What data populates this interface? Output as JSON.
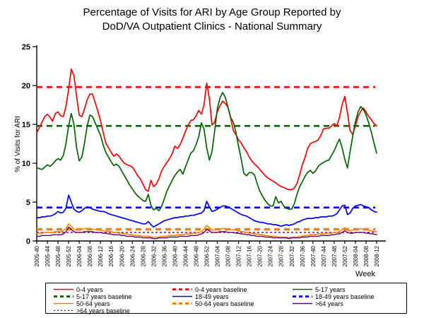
{
  "title": {
    "line1": "Percentage of Visits for ARI by Age Group Reported by",
    "line2": "DoD/VA Outpatient Clinics - National Summary"
  },
  "chart_data": {
    "type": "line",
    "title": "Percentage of Visits for ARI by Age Group Reported by DoD/VA Outpatient Clinics - National Summary",
    "xlabel": "Week",
    "ylabel": "% of Visits for ARI",
    "ylim": [
      0,
      25
    ],
    "y_tick_labels": [
      "0",
      "5",
      "10",
      "15",
      "20",
      "25"
    ],
    "x_tick_every": 4,
    "x_tick_labels": [
      "2005-40",
      "2005-44",
      "2005-48",
      "2005-52",
      "2006-04",
      "2006-08",
      "2006-12",
      "2006-16",
      "2006-20",
      "2006-24",
      "2006-28",
      "2006-32",
      "2006-36",
      "2006-40",
      "2006-44",
      "2006-48",
      "2006-52",
      "2007-04",
      "2007-08",
      "2007-12",
      "2007-16",
      "2007-20",
      "2007-24",
      "2007-28",
      "2007-32",
      "2007-36",
      "2007-40",
      "2007-44",
      "2007-48",
      "2007-52",
      "2008-04",
      "2008-08",
      "2008-12"
    ],
    "x_range_note": "weekly points from 2005-40 through 2008-12",
    "grid": false,
    "legend_position": "bottom",
    "series": [
      {
        "name": "0-4 years",
        "color": "#FF0000",
        "style": "solid",
        "width": 1.7,
        "values": [
          13.9,
          14.6,
          15.3,
          16.0,
          16.3,
          15.9,
          15.4,
          16.4,
          16.6,
          16.1,
          16.0,
          17.3,
          19.5,
          22.1,
          21.3,
          18.6,
          16.2,
          16.0,
          17.0,
          18.2,
          18.9,
          18.9,
          17.8,
          16.7,
          15.5,
          14.0,
          12.6,
          12.0,
          11.4,
          10.9,
          11.2,
          10.9,
          10.4,
          10.0,
          9.8,
          9.7,
          9.5,
          9.0,
          8.4,
          8.0,
          7.3,
          6.6,
          6.4,
          7.8,
          7.0,
          7.3,
          8.0,
          9.0,
          9.6,
          10.1,
          10.6,
          11.2,
          12.2,
          11.9,
          12.4,
          13.2,
          14.1,
          14.9,
          15.5,
          15.6,
          16.1,
          16.8,
          16.3,
          17.5,
          20.3,
          18.3,
          14.9,
          15.3,
          16.6,
          17.4,
          18.0,
          17.7,
          17.2,
          15.9,
          14.2,
          13.7,
          13.0,
          12.6,
          12.0,
          11.5,
          10.8,
          10.3,
          9.9,
          9.6,
          9.2,
          8.8,
          8.4,
          8.1,
          7.9,
          7.7,
          7.5,
          7.2,
          7.0,
          6.9,
          6.7,
          6.6,
          6.6,
          6.8,
          7.4,
          8.5,
          9.8,
          10.7,
          11.9,
          12.5,
          12.7,
          12.8,
          13.0,
          13.6,
          14.4,
          14.5,
          14.5,
          14.8,
          15.1,
          14.8,
          15.9,
          17.5,
          18.6,
          16.5,
          14.2,
          13.7,
          14.8,
          16.0,
          16.7,
          17.1,
          16.6,
          16.0,
          15.6,
          15.1,
          14.8
        ]
      },
      {
        "name": "5-17 years",
        "color": "#006400",
        "style": "solid",
        "width": 1.7,
        "values": [
          9.4,
          9.3,
          9.2,
          9.5,
          9.8,
          9.6,
          9.9,
          10.3,
          10.6,
          10.4,
          11.0,
          12.5,
          14.8,
          16.4,
          15.0,
          12.0,
          10.3,
          10.8,
          12.6,
          14.8,
          16.2,
          16.0,
          15.2,
          14.4,
          13.6,
          12.4,
          11.4,
          10.8,
          10.2,
          9.7,
          9.9,
          9.6,
          9.0,
          8.4,
          7.8,
          7.2,
          6.7,
          6.2,
          5.8,
          5.5,
          5.2,
          5.1,
          6.0,
          4.6,
          4.0,
          4.2,
          3.9,
          4.4,
          5.4,
          6.4,
          7.1,
          7.8,
          8.4,
          8.9,
          9.2,
          8.6,
          9.5,
          10.4,
          11.3,
          11.6,
          12.4,
          13.4,
          15.2,
          14.4,
          12.0,
          10.4,
          11.5,
          14.2,
          17.0,
          18.4,
          19.1,
          18.5,
          17.2,
          15.9,
          15.3,
          14.0,
          12.2,
          10.5,
          8.7,
          8.4,
          8.8,
          8.8,
          8.5,
          7.4,
          6.4,
          5.8,
          5.2,
          4.8,
          4.5,
          4.5,
          5.7,
          4.9,
          5.1,
          4.5,
          4.2,
          4.1,
          4.1,
          4.8,
          6.0,
          7.0,
          7.6,
          8.3,
          8.8,
          9.1,
          8.7,
          9.0,
          9.6,
          9.9,
          10.1,
          10.3,
          10.4,
          11.0,
          11.6,
          12.4,
          13.1,
          12.0,
          10.5,
          9.4,
          11.5,
          13.5,
          15.3,
          16.6,
          17.3,
          16.9,
          16.2,
          15.2,
          14.0,
          12.6,
          11.3
        ]
      },
      {
        "name": "18-49 years",
        "color": "#0000EE",
        "style": "solid",
        "width": 1.7,
        "values": [
          3.0,
          3.0,
          3.1,
          3.1,
          3.2,
          3.2,
          3.3,
          3.5,
          3.8,
          3.6,
          3.7,
          4.2,
          5.9,
          5.0,
          4.1,
          3.8,
          3.7,
          3.9,
          4.2,
          4.4,
          4.3,
          4.1,
          4.0,
          3.9,
          3.8,
          3.8,
          3.7,
          3.5,
          3.4,
          3.3,
          3.2,
          3.1,
          3.0,
          2.9,
          2.8,
          2.7,
          2.6,
          2.5,
          2.4,
          2.3,
          2.2,
          2.2,
          2.5,
          2.1,
          1.8,
          2.0,
          2.2,
          2.4,
          2.6,
          2.7,
          2.8,
          2.9,
          3.0,
          3.0,
          3.1,
          3.1,
          3.2,
          3.2,
          3.3,
          3.3,
          3.4,
          3.5,
          3.6,
          3.9,
          5.1,
          4.4,
          3.8,
          3.9,
          4.1,
          4.3,
          4.5,
          4.5,
          4.4,
          4.2,
          4.0,
          3.8,
          3.6,
          3.4,
          3.3,
          3.2,
          3.0,
          2.8,
          2.6,
          2.5,
          2.4,
          2.4,
          2.3,
          2.2,
          2.2,
          2.1,
          2.1,
          2.0,
          1.9,
          2.0,
          2.1,
          2.0,
          2.1,
          2.2,
          2.4,
          2.5,
          2.7,
          2.8,
          2.9,
          2.9,
          2.9,
          3.0,
          3.0,
          3.1,
          3.1,
          3.1,
          3.2,
          3.2,
          3.3,
          3.5,
          4.0,
          4.5,
          4.6,
          3.4,
          3.6,
          4.2,
          4.5,
          4.6,
          4.7,
          4.5,
          4.4,
          4.3,
          4.0,
          3.8,
          3.7
        ]
      },
      {
        "name": "50-64 years",
        "color": "#FF8000",
        "style": "solid",
        "width": 1.6,
        "values": [
          1.0,
          1.0,
          1.0,
          1.1,
          1.1,
          1.1,
          1.1,
          1.2,
          1.2,
          1.2,
          1.3,
          1.6,
          2.2,
          1.9,
          1.5,
          1.4,
          1.4,
          1.5,
          1.6,
          1.6,
          1.6,
          1.5,
          1.5,
          1.4,
          1.4,
          1.3,
          1.3,
          1.2,
          1.2,
          1.1,
          1.1,
          1.0,
          1.0,
          0.9,
          0.9,
          0.8,
          0.8,
          0.7,
          0.7,
          0.7,
          0.6,
          0.6,
          0.6,
          0.5,
          0.5,
          0.5,
          0.5,
          0.6,
          0.6,
          0.6,
          0.7,
          0.7,
          0.7,
          0.8,
          0.8,
          0.8,
          0.9,
          0.9,
          0.9,
          1.0,
          1.0,
          1.1,
          1.2,
          1.5,
          2.0,
          1.7,
          1.4,
          1.4,
          1.5,
          1.5,
          1.6,
          1.6,
          1.5,
          1.5,
          1.4,
          1.4,
          1.3,
          1.2,
          1.2,
          1.1,
          1.0,
          1.0,
          0.9,
          0.9,
          0.8,
          0.8,
          0.7,
          0.7,
          0.6,
          0.6,
          0.6,
          0.5,
          0.5,
          0.5,
          0.5,
          0.4,
          0.5,
          0.5,
          0.5,
          0.6,
          0.6,
          0.7,
          0.7,
          0.8,
          0.8,
          0.8,
          0.9,
          0.9,
          0.9,
          1.0,
          1.0,
          1.0,
          1.1,
          1.1,
          1.2,
          1.5,
          1.7,
          1.4,
          1.3,
          1.4,
          1.5,
          1.5,
          1.6,
          1.5,
          1.5,
          1.4,
          1.3,
          1.2,
          1.2
        ]
      },
      {
        "name": ">64 years",
        "color": "#660066",
        "style": "solid",
        "width": 1.4,
        "values": [
          0.6,
          0.6,
          0.7,
          0.7,
          0.7,
          0.7,
          0.8,
          0.8,
          0.8,
          0.8,
          0.9,
          1.2,
          1.8,
          1.5,
          1.2,
          1.1,
          1.1,
          1.1,
          1.2,
          1.2,
          1.2,
          1.2,
          1.1,
          1.1,
          1.1,
          1.0,
          1.0,
          0.9,
          0.9,
          0.8,
          0.8,
          0.8,
          0.7,
          0.7,
          0.6,
          0.6,
          0.6,
          0.5,
          0.5,
          0.5,
          0.4,
          0.4,
          0.4,
          0.4,
          0.3,
          0.3,
          0.4,
          0.4,
          0.4,
          0.4,
          0.5,
          0.5,
          0.5,
          0.5,
          0.6,
          0.6,
          0.6,
          0.6,
          0.7,
          0.7,
          0.7,
          0.8,
          0.9,
          1.1,
          1.5,
          1.3,
          1.1,
          1.1,
          1.1,
          1.2,
          1.2,
          1.2,
          1.1,
          1.1,
          1.1,
          1.0,
          1.0,
          0.9,
          0.9,
          0.8,
          0.8,
          0.7,
          0.7,
          0.6,
          0.6,
          0.6,
          0.5,
          0.5,
          0.5,
          0.4,
          0.4,
          0.4,
          0.4,
          0.4,
          0.4,
          0.3,
          0.4,
          0.4,
          0.4,
          0.4,
          0.5,
          0.5,
          0.5,
          0.6,
          0.6,
          0.6,
          0.6,
          0.7,
          0.7,
          0.7,
          0.7,
          0.8,
          0.8,
          0.9,
          0.9,
          1.1,
          1.3,
          1.1,
          1.0,
          1.0,
          1.1,
          1.1,
          1.1,
          1.1,
          1.0,
          1.0,
          0.9,
          0.9,
          0.8
        ]
      }
    ],
    "baselines": [
      {
        "name": "0-4 years baseline",
        "color": "#FF0000",
        "value": 19.8,
        "width": 2.6,
        "dash": "8 6"
      },
      {
        "name": "5-17 years baseline",
        "color": "#006400",
        "value": 14.8,
        "width": 2.6,
        "dash": "8 6"
      },
      {
        "name": "18-49 years baseline",
        "color": "#0000EE",
        "value": 4.3,
        "width": 2.6,
        "dash": "8 6"
      },
      {
        "name": "50-64 years baseline",
        "color": "#FF8000",
        "value": 1.5,
        "width": 3.4,
        "dash": "8 6"
      },
      {
        "name": ">64 years baseline",
        "color": "#660066",
        "value": 1.1,
        "width": 1.4,
        "dash": "3 3"
      }
    ]
  },
  "legend": {
    "items": [
      {
        "label": "0-4 years",
        "color": "#FF0000",
        "dash": "",
        "width": 1.4
      },
      {
        "label": "0-4 years baseline",
        "color": "#FF0000",
        "dash": "5 4",
        "width": 2.8
      },
      {
        "label": "5-17 years",
        "color": "#006400",
        "dash": "",
        "width": 1.4
      },
      {
        "label": "5-17 years baseline",
        "color": "#006400",
        "dash": "5 4",
        "width": 2.8
      },
      {
        "label": "18-49 years",
        "color": "#0000EE",
        "dash": "",
        "width": 1.4
      },
      {
        "label": "18-49 years baseline",
        "color": "#0000EE",
        "dash": "5 4",
        "width": 2.8
      },
      {
        "label": "50-64 years",
        "color": "#FF8000",
        "dash": "",
        "width": 1.4
      },
      {
        "label": "50-64 years baseline",
        "color": "#FF8000",
        "dash": "5 4",
        "width": 3.0
      },
      {
        "label": ">64 years",
        "color": "#660066",
        "dash": "",
        "width": 1.4
      },
      {
        "label": ">64 years baseline",
        "color": "#660066",
        "dash": "2 3",
        "width": 1.3
      }
    ]
  }
}
